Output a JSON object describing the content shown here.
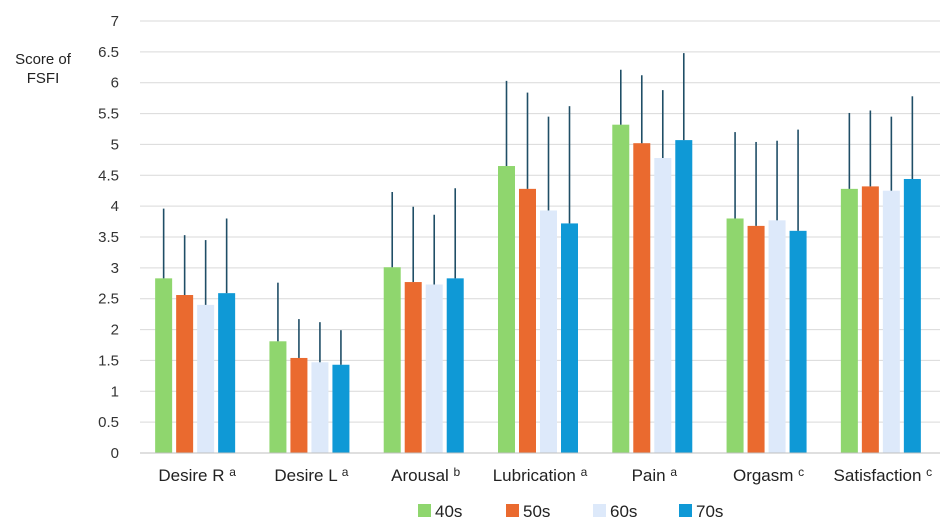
{
  "chart_data": {
    "type": "bar",
    "ylabel_line1": "Score of",
    "ylabel_line2": "FSFI",
    "ylim": [
      0,
      7
    ],
    "yticks": [
      "0",
      "0.5",
      "1",
      "1.5",
      "2",
      "2.5",
      "3",
      "3.5",
      "4",
      "4.5",
      "5",
      "5.5",
      "6",
      "6.5",
      "7"
    ],
    "grid": true,
    "legend_position": "bottom",
    "categories": [
      {
        "name": "Desire R",
        "sup": "a"
      },
      {
        "name": "Desire L",
        "sup": "a"
      },
      {
        "name": "Arousal",
        "sup": "b"
      },
      {
        "name": "Lubrication",
        "sup": "a"
      },
      {
        "name": "Pain",
        "sup": "a"
      },
      {
        "name": "Orgasm",
        "sup": "c"
      },
      {
        "name": "Satisfaction",
        "sup": "c"
      }
    ],
    "series": [
      {
        "name": "40s",
        "color": "#8fd66e",
        "values": [
          2.83,
          1.81,
          3.01,
          4.65,
          5.32,
          3.8,
          4.28
        ],
        "errors": [
          1.13,
          0.95,
          1.22,
          1.38,
          0.89,
          1.4,
          1.23
        ]
      },
      {
        "name": "50s",
        "color": "#ea6a2f",
        "values": [
          2.56,
          1.54,
          2.77,
          4.28,
          5.02,
          3.68,
          4.32
        ],
        "errors": [
          0.97,
          0.63,
          1.22,
          1.56,
          1.1,
          1.36,
          1.23
        ]
      },
      {
        "name": "60s",
        "color": "#dde9fa",
        "values": [
          2.4,
          1.47,
          2.73,
          3.93,
          4.78,
          3.77,
          4.25
        ],
        "errors": [
          1.05,
          0.65,
          1.13,
          1.52,
          1.1,
          1.29,
          1.2
        ]
      },
      {
        "name": "70s",
        "color": "#0f99d6",
        "values": [
          2.59,
          1.43,
          2.83,
          3.72,
          5.07,
          3.6,
          4.44
        ],
        "errors": [
          1.21,
          0.56,
          1.46,
          1.9,
          1.41,
          1.64,
          1.34
        ]
      }
    ],
    "error_bar_color": "#1f4e66",
    "gridline_color": "#d9d9d9"
  }
}
